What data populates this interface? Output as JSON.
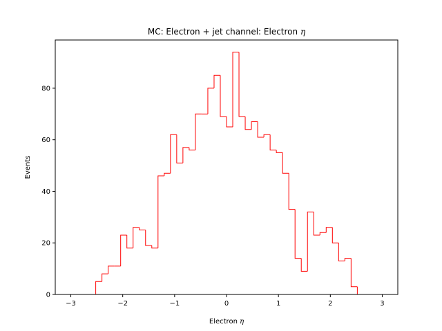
{
  "chart_data": {
    "type": "step-histogram",
    "title": "MC: Electron + jet channel: Electron η",
    "title_prefix": "MC: Electron + jet channel: Electron ",
    "title_symbol": "η",
    "xlabel": "Electron η",
    "xlabel_prefix": "Electron ",
    "xlabel_symbol": "η",
    "ylabel": "Events",
    "xlim": [
      -3.3,
      3.3
    ],
    "ylim": [
      0,
      98.7
    ],
    "x_ticks": [
      -3,
      -2,
      -1,
      0,
      1,
      2,
      3
    ],
    "x_tick_labels": [
      "−3",
      "−2",
      "−1",
      "0",
      "1",
      "2",
      "3"
    ],
    "y_ticks": [
      0,
      20,
      40,
      60,
      80
    ],
    "y_tick_labels": [
      "0",
      "20",
      "40",
      "60",
      "80"
    ],
    "grid": false,
    "line_color": "#ff0000",
    "bin_edges_range": [
      -3,
      3
    ],
    "bin_width": 0.12,
    "counts": [
      0,
      0,
      0,
      0,
      5,
      8,
      11,
      11,
      23,
      18,
      26,
      25,
      19,
      18,
      46,
      47,
      62,
      51,
      57,
      56,
      70,
      70,
      80,
      85,
      69,
      65,
      94,
      69,
      64,
      67,
      61,
      62,
      56,
      55,
      47,
      33,
      14,
      9,
      32,
      23,
      24,
      26,
      20,
      13,
      14,
      3,
      0,
      0,
      0,
      0
    ]
  }
}
